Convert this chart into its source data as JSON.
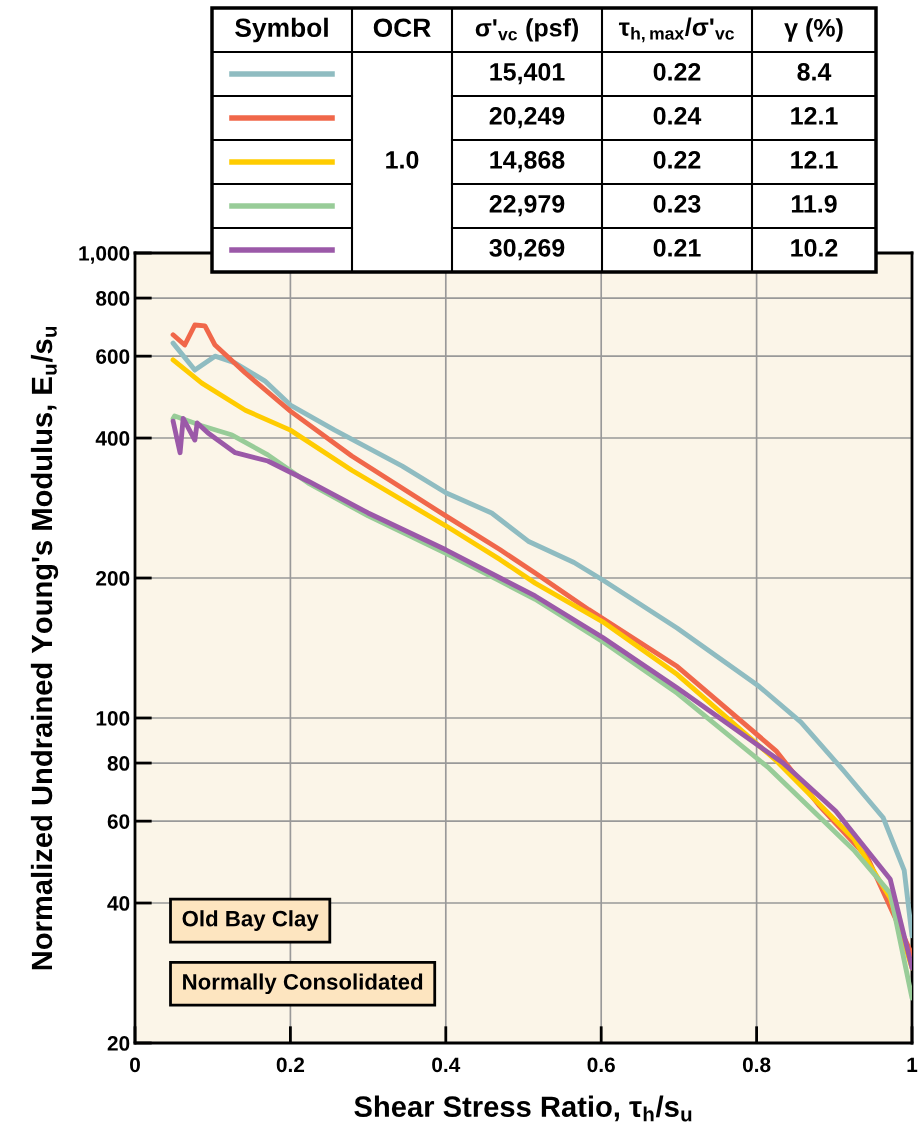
{
  "chart_data": {
    "type": "line",
    "xlabel": "Shear Stress Ratio, τ$_{h}$/s$_{u}$",
    "ylabel": "Normalized Undrained Young's Modulus, E$_{u}$/s$_{u}$",
    "log": "y",
    "xlim": [
      0,
      1
    ],
    "ylim": [
      20,
      1000
    ],
    "xticks": [
      0,
      0.2,
      0.4,
      0.6,
      0.8,
      1
    ],
    "yticks": [
      20,
      40,
      60,
      80,
      100,
      200,
      400,
      600,
      800,
      {
        "value": 1000,
        "label": "1,000"
      }
    ],
    "grid": true,
    "line_style": "solid",
    "marker": "none",
    "annotations": [
      "Old Bay Clay",
      "Normally Consolidated",
      "Symbol",
      "OCR",
      "σ'$_{vc}$ (psf)",
      "τ$_{h,max}$/σ'$_{vc}$",
      "γ (%)",
      "1.0",
      "15,401",
      "0.22",
      "8.4",
      "20,249",
      "0.24",
      "12.1",
      "14,868",
      "0.22",
      "12.1",
      "22,979",
      "0.23",
      "11.9",
      "30,269",
      "0.21",
      "10.2"
    ],
    "series": [
      {
        "color": "#8fbcc1",
        "x": [
          0.049,
          0.077,
          0.103,
          0.129,
          0.167,
          0.2,
          0.257,
          0.344,
          0.4,
          0.459,
          0.506,
          0.565,
          0.602,
          0.698,
          0.803,
          0.857,
          0.912,
          0.963,
          0.99,
          1.0
        ],
        "values": [
          640,
          560,
          600,
          580,
          531,
          471,
          416,
          348,
          305,
          276,
          240,
          216,
          198,
          156,
          117,
          98,
          77,
          61,
          47,
          34
        ]
      },
      {
        "color": "#f0674a",
        "x": [
          0.049,
          0.064,
          0.077,
          0.09,
          0.103,
          0.142,
          0.2,
          0.279,
          0.4,
          0.47,
          0.515,
          0.584,
          0.698,
          0.825,
          0.88,
          0.943,
          1.0
        ],
        "values": [
          667,
          634,
          700,
          697,
          634,
          552,
          457,
          366,
          272,
          230,
          205,
          171,
          129,
          85,
          65,
          50,
          31
        ]
      },
      {
        "color": "#ffcc00",
        "x": [
          0.049,
          0.086,
          0.142,
          0.2,
          0.279,
          0.4,
          0.47,
          0.515,
          0.602,
          0.698,
          0.825,
          0.925,
          0.972,
          1.0
        ],
        "values": [
          589,
          525,
          459,
          416,
          341,
          259,
          219,
          195,
          161,
          124,
          81,
          55,
          41,
          29
        ]
      },
      {
        "color": "#98cc98",
        "x": [
          0.049,
          0.051,
          0.086,
          0.125,
          0.171,
          0.223,
          0.3,
          0.4,
          0.47,
          0.515,
          0.602,
          0.698,
          0.816,
          0.925,
          0.972,
          1.0
        ],
        "values": [
          440,
          446,
          425,
          406,
          368,
          320,
          272,
          226,
          197,
          180,
          146,
          113,
          78,
          52,
          42,
          25
        ]
      },
      {
        "color": "#9b59a8",
        "x": [
          0.049,
          0.058,
          0.062,
          0.077,
          0.08,
          0.094,
          0.129,
          0.171,
          0.223,
          0.3,
          0.4,
          0.47,
          0.515,
          0.602,
          0.698,
          0.834,
          0.902,
          0.972,
          1.0
        ],
        "values": [
          435,
          372,
          441,
          396,
          431,
          410,
          372,
          357,
          323,
          276,
          230,
          200,
          183,
          149,
          116,
          80,
          63,
          45,
          29
        ]
      }
    ]
  }
}
